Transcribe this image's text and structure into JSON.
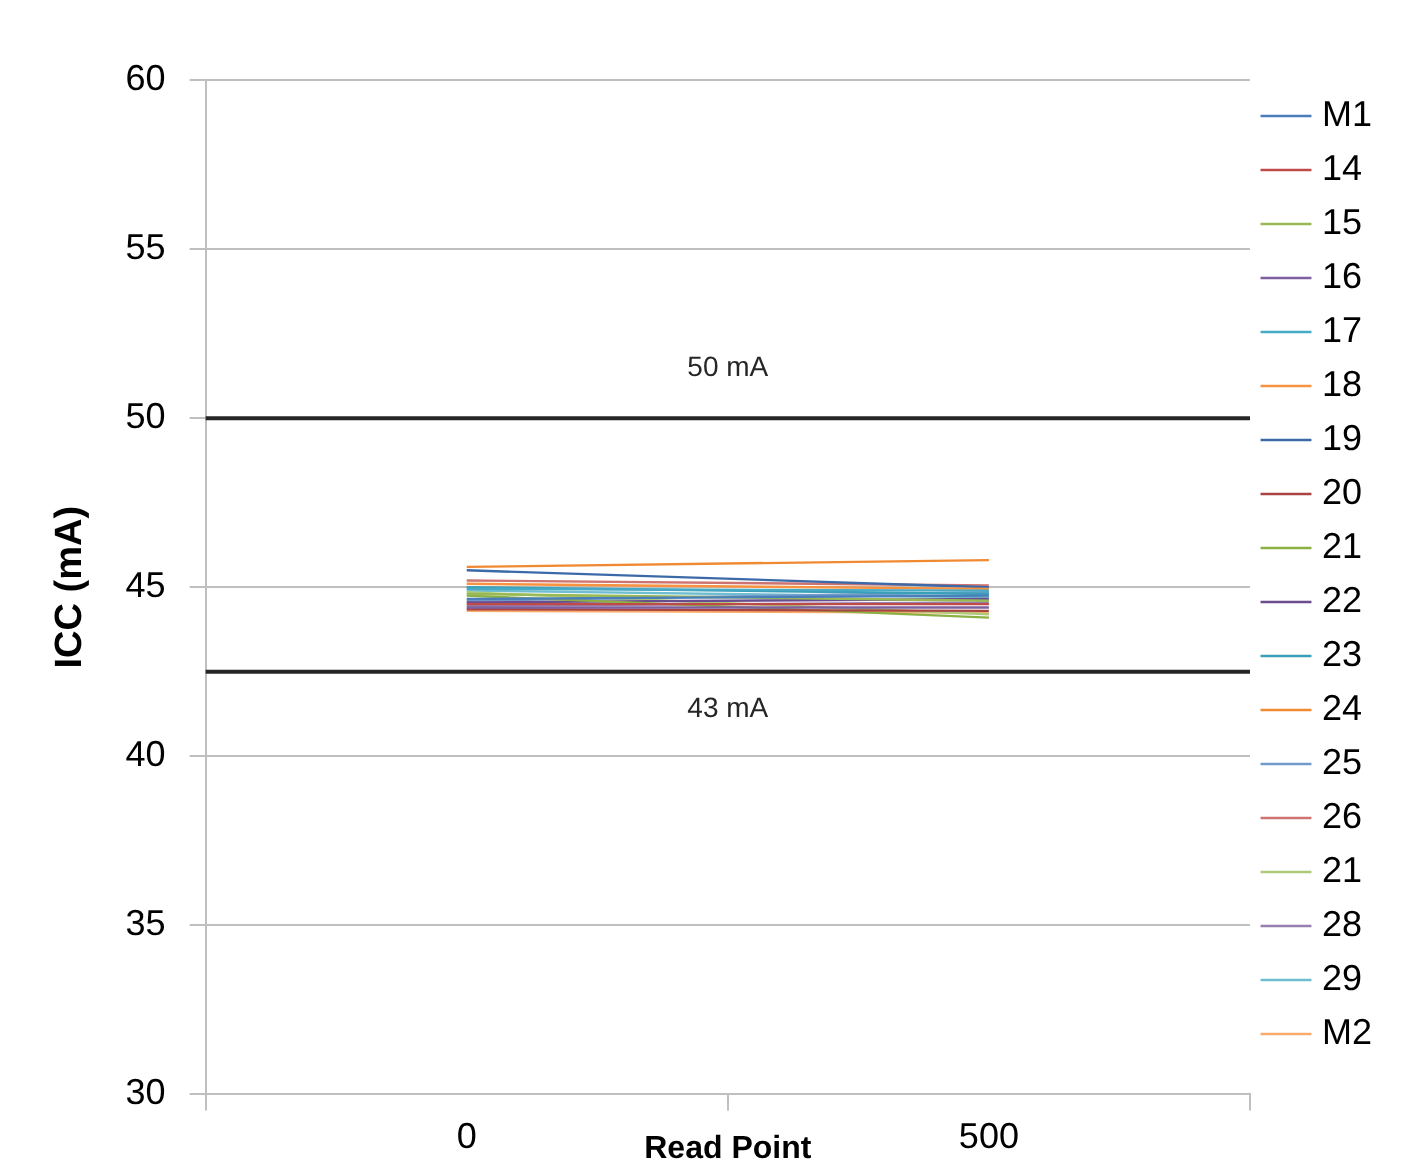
{
  "chart_data": {
    "type": "line",
    "xlabel": "Read Point",
    "ylabel": "ICC (mA)",
    "categories": [
      "0",
      "500"
    ],
    "ylim": [
      30,
      60
    ],
    "yticks": [
      30,
      35,
      40,
      45,
      50,
      55,
      60
    ],
    "grid": "y",
    "legend": "right",
    "marker": "none",
    "line_style": "solid",
    "ref_lines": [
      {
        "axis": "y",
        "value": 50,
        "label": "50 mA",
        "color": "#262626"
      },
      {
        "axis": "y",
        "value": 42.5,
        "label": "43 mA",
        "color": "#262626"
      }
    ],
    "series": [
      {
        "name": "M1",
        "color": "#4a7ebb",
        "values": [
          44.65,
          44.75
        ]
      },
      {
        "name": "14",
        "color": "#be4b48",
        "values": [
          44.5,
          44.5
        ]
      },
      {
        "name": "15",
        "color": "#98b954",
        "values": [
          44.8,
          44.6
        ]
      },
      {
        "name": "16",
        "color": "#7d60a0",
        "values": [
          44.4,
          44.4
        ]
      },
      {
        "name": "17",
        "color": "#46aac5",
        "values": [
          44.95,
          44.9
        ]
      },
      {
        "name": "18",
        "color": "#f69240",
        "values": [
          45.1,
          44.95
        ]
      },
      {
        "name": "19",
        "color": "#3c6aa8",
        "values": [
          45.5,
          45.0
        ]
      },
      {
        "name": "20",
        "color": "#a94442",
        "values": [
          44.35,
          44.3
        ]
      },
      {
        "name": "21",
        "color": "#8bb043",
        "values": [
          44.75,
          44.1
        ]
      },
      {
        "name": "22",
        "color": "#6a4d8e",
        "values": [
          44.55,
          44.65
        ]
      },
      {
        "name": "23",
        "color": "#3aa0b8",
        "values": [
          45.0,
          44.8
        ]
      },
      {
        "name": "24",
        "color": "#f08a32",
        "values": [
          45.6,
          45.8
        ]
      },
      {
        "name": "25",
        "color": "#729aca",
        "values": [
          44.6,
          44.85
        ]
      },
      {
        "name": "26",
        "color": "#cd7371",
        "values": [
          45.2,
          45.05
        ]
      },
      {
        "name": "21",
        "color": "#afc97a",
        "values": [
          44.85,
          44.2
        ]
      },
      {
        "name": "28",
        "color": "#977fb1",
        "values": [
          44.45,
          44.55
        ]
      },
      {
        "name": "29",
        "color": "#6fbdd1",
        "values": [
          44.9,
          44.7
        ]
      },
      {
        "name": "M2",
        "color": "#f9ab6b",
        "values": [
          44.3,
          44.25
        ]
      }
    ]
  }
}
